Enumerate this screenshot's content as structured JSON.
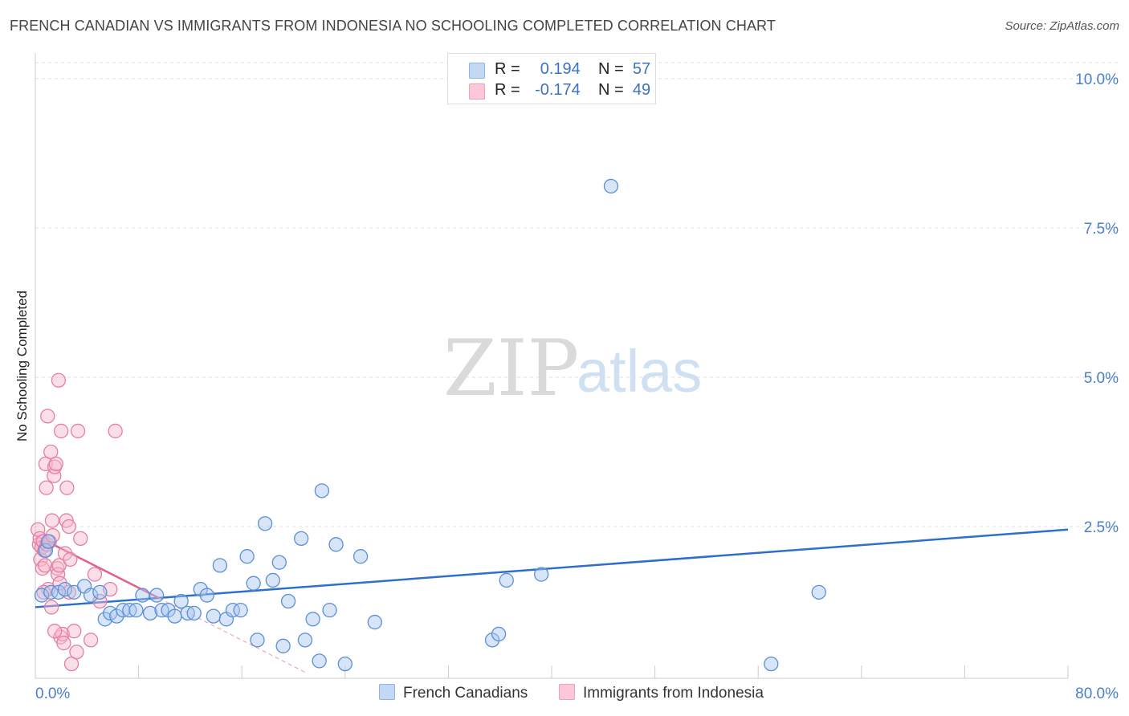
{
  "title": "FRENCH CANADIAN VS IMMIGRANTS FROM INDONESIA NO SCHOOLING COMPLETED CORRELATION CHART",
  "source": "Source: ZipAtlas.com",
  "watermark": {
    "zip": "ZIP",
    "atlas": "atlas"
  },
  "colors": {
    "blue_fill": "#a9c6ee",
    "blue_stroke": "#5b8fd6",
    "blue_line": "#2f6fcc",
    "pink_fill": "#f7b9cc",
    "pink_stroke": "#e57fa2",
    "pink_line": "#e0638d",
    "tick": "#4a7fc9",
    "grid": "#dddddd"
  },
  "legend": {
    "rows": [
      {
        "r_label": "R =",
        "r_value": "0.194",
        "n_label": "N =",
        "n_value": "57"
      },
      {
        "r_label": "R =",
        "r_value": "-0.174",
        "n_label": "N =",
        "n_value": "49"
      }
    ]
  },
  "bottom_legend": {
    "series1": "French Canadians",
    "series2": "Immigrants from Indonesia"
  },
  "chart_data": {
    "type": "scatter",
    "title": "FRENCH CANADIAN VS IMMIGRANTS FROM INDONESIA NO SCHOOLING COMPLETED CORRELATION CHART",
    "xlabel": "",
    "ylabel": "No Schooling Completed",
    "xlim": [
      0,
      80
    ],
    "ylim": [
      0,
      10.5
    ],
    "x_tick_labels": [
      "0.0%",
      "80.0%"
    ],
    "y_ticks": [
      2.5,
      5.0,
      7.5,
      10.0
    ],
    "y_tick_labels": [
      "2.5%",
      "5.0%",
      "7.5%",
      "10.0%"
    ],
    "grid": true,
    "series": [
      {
        "name": "French Canadians",
        "r": 0.194,
        "n": 57,
        "trend": {
          "x": [
            0,
            80
          ],
          "y": [
            1.15,
            2.45
          ]
        },
        "points": [
          [
            0.5,
            1.35
          ],
          [
            0.8,
            2.1
          ],
          [
            1.2,
            1.4
          ],
          [
            1.8,
            1.4
          ],
          [
            2.3,
            1.45
          ],
          [
            3.0,
            1.4
          ],
          [
            3.8,
            1.5
          ],
          [
            4.3,
            1.35
          ],
          [
            5.0,
            1.4
          ],
          [
            5.4,
            0.95
          ],
          [
            5.8,
            1.05
          ],
          [
            6.3,
            1.0
          ],
          [
            6.8,
            1.1
          ],
          [
            7.3,
            1.1
          ],
          [
            7.8,
            1.1
          ],
          [
            8.3,
            1.35
          ],
          [
            8.9,
            1.05
          ],
          [
            9.4,
            1.35
          ],
          [
            9.8,
            1.1
          ],
          [
            10.3,
            1.1
          ],
          [
            10.8,
            1.0
          ],
          [
            11.3,
            1.25
          ],
          [
            11.8,
            1.05
          ],
          [
            12.3,
            1.05
          ],
          [
            12.8,
            1.45
          ],
          [
            13.3,
            1.35
          ],
          [
            13.8,
            1.0
          ],
          [
            14.3,
            1.85
          ],
          [
            14.8,
            0.95
          ],
          [
            15.3,
            1.1
          ],
          [
            15.9,
            1.1
          ],
          [
            16.4,
            2.0
          ],
          [
            16.9,
            1.55
          ],
          [
            17.2,
            0.6
          ],
          [
            17.8,
            2.55
          ],
          [
            18.4,
            1.6
          ],
          [
            18.9,
            1.9
          ],
          [
            19.2,
            0.5
          ],
          [
            19.6,
            1.25
          ],
          [
            20.6,
            2.3
          ],
          [
            20.9,
            0.6
          ],
          [
            21.5,
            0.95
          ],
          [
            22.0,
            0.25
          ],
          [
            22.2,
            3.1
          ],
          [
            22.8,
            1.1
          ],
          [
            23.3,
            2.2
          ],
          [
            24.0,
            0.2
          ],
          [
            25.2,
            2.0
          ],
          [
            26.3,
            0.9
          ],
          [
            35.4,
            0.6
          ],
          [
            35.9,
            0.7
          ],
          [
            36.5,
            1.6
          ],
          [
            39.2,
            1.7
          ],
          [
            44.6,
            8.2
          ],
          [
            57.0,
            0.2
          ],
          [
            60.7,
            1.4
          ],
          [
            1.0,
            2.25
          ]
        ]
      },
      {
        "name": "Immigrants from Indonesia",
        "r": -0.174,
        "n": 49,
        "trend": {
          "x": [
            0,
            9.6
          ],
          "y": [
            2.35,
            1.3
          ]
        },
        "trend_dashed": {
          "x": [
            9.6,
            21
          ],
          "y": [
            1.3,
            0.05
          ]
        },
        "points": [
          [
            0.2,
            2.45
          ],
          [
            0.3,
            2.2
          ],
          [
            0.35,
            2.3
          ],
          [
            0.4,
            1.95
          ],
          [
            0.5,
            2.15
          ],
          [
            0.55,
            1.8
          ],
          [
            0.6,
            2.25
          ],
          [
            0.7,
            2.1
          ],
          [
            0.75,
            1.85
          ],
          [
            0.8,
            3.55
          ],
          [
            0.85,
            3.15
          ],
          [
            0.9,
            2.2
          ],
          [
            0.95,
            4.35
          ],
          [
            1.0,
            1.45
          ],
          [
            1.1,
            2.25
          ],
          [
            1.2,
            3.75
          ],
          [
            1.3,
            2.6
          ],
          [
            1.35,
            2.35
          ],
          [
            1.45,
            3.35
          ],
          [
            1.5,
            3.5
          ],
          [
            1.6,
            3.55
          ],
          [
            1.7,
            1.8
          ],
          [
            1.75,
            1.7
          ],
          [
            1.8,
            4.95
          ],
          [
            1.85,
            1.85
          ],
          [
            1.9,
            1.55
          ],
          [
            1.95,
            0.65
          ],
          [
            2.0,
            4.1
          ],
          [
            2.1,
            0.7
          ],
          [
            2.2,
            0.55
          ],
          [
            2.3,
            2.05
          ],
          [
            2.4,
            2.6
          ],
          [
            2.45,
            3.15
          ],
          [
            2.6,
            2.5
          ],
          [
            2.7,
            1.95
          ],
          [
            2.8,
            0.2
          ],
          [
            3.0,
            0.75
          ],
          [
            3.2,
            0.4
          ],
          [
            3.3,
            4.1
          ],
          [
            3.5,
            2.3
          ],
          [
            4.3,
            0.6
          ],
          [
            4.6,
            1.7
          ],
          [
            5.0,
            1.25
          ],
          [
            5.8,
            1.45
          ],
          [
            6.2,
            4.1
          ],
          [
            1.25,
            1.15
          ],
          [
            1.5,
            0.75
          ],
          [
            2.6,
            1.4
          ],
          [
            0.65,
            1.4
          ]
        ]
      }
    ]
  }
}
